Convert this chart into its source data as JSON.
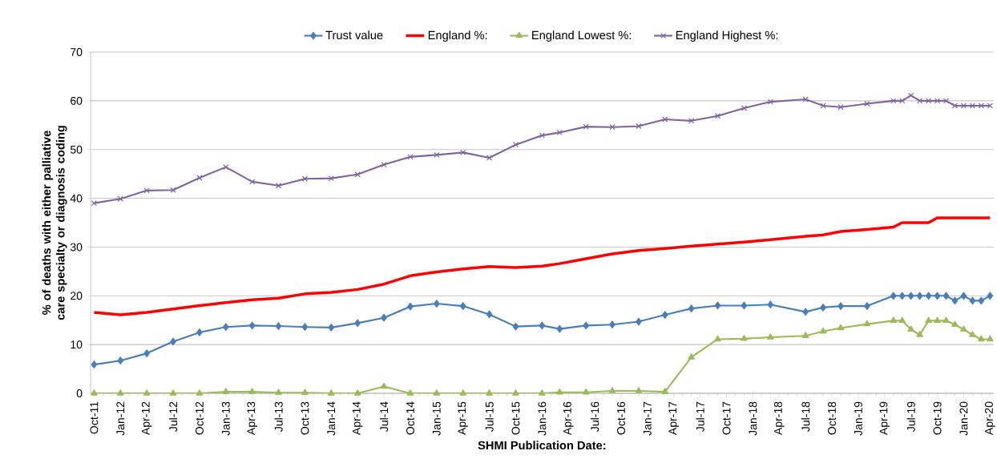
{
  "chart_data": {
    "type": "line",
    "xlabel": "SHMI Publication Date:",
    "ylabel": "% of deaths with either palliative care specialty or diagnosis coding",
    "x": [
      "2011-10",
      "2012-01",
      "2012-04",
      "2012-07",
      "2012-10",
      "2013-01",
      "2013-04",
      "2013-07",
      "2013-10",
      "2014-01",
      "2014-04",
      "2014-07",
      "2014-10",
      "2015-01",
      "2015-04",
      "2015-07",
      "2015-10",
      "2016-01",
      "2016-03",
      "2016-06",
      "2016-09",
      "2016-12",
      "2017-03",
      "2017-06",
      "2017-09",
      "2017-12",
      "2018-03",
      "2018-07",
      "2018-09",
      "2018-11",
      "2019-02",
      "2019-05",
      "2019-06",
      "2019-07",
      "2019-08",
      "2019-09",
      "2019-10",
      "2019-11",
      "2019-12",
      "2020-01",
      "2020-02",
      "2020-03",
      "2020-04"
    ],
    "series": [
      {
        "name": "Trust value",
        "color": "#4a7ebb",
        "marker": "diamond",
        "values": [
          5.9,
          6.7,
          8.2,
          10.6,
          12.5,
          13.6,
          13.9,
          13.8,
          13.6,
          13.5,
          14.4,
          15.5,
          17.8,
          18.4,
          17.9,
          16.2,
          13.7,
          13.9,
          13.2,
          13.9,
          14.1,
          14.7,
          16.1,
          17.4,
          18.0,
          18.0,
          18.2,
          16.7,
          17.6,
          17.9,
          17.9,
          20,
          20,
          20,
          20,
          20,
          20,
          20,
          19,
          20,
          19,
          19,
          20
        ]
      },
      {
        "name": "England %:",
        "color": "#ff0000",
        "marker": "none",
        "values": [
          16.6,
          16.1,
          16.6,
          17.3,
          18.0,
          18.6,
          19.2,
          19.5,
          20.4,
          20.7,
          21.3,
          22.4,
          24.1,
          24.9,
          25.5,
          26.0,
          25.8,
          26.1,
          26.6,
          27.6,
          28.6,
          29.3,
          29.7,
          30.2,
          30.6,
          31.0,
          31.5,
          32.2,
          32.5,
          33.2,
          33.6,
          34.1,
          35,
          35,
          35,
          35,
          36,
          36,
          36,
          36,
          36,
          36,
          36
        ]
      },
      {
        "name": "England Lowest  %:",
        "color": "#9bbb59",
        "marker": "triangle",
        "values": [
          0,
          0,
          0,
          0,
          0,
          0.3,
          0.3,
          0.1,
          0.1,
          0,
          0,
          1.4,
          0,
          0,
          0,
          0,
          0,
          0,
          0.2,
          0.2,
          0.5,
          0.5,
          0.3,
          7.4,
          11.1,
          11.2,
          11.5,
          11.8,
          12.7,
          13.4,
          14.2,
          14.9,
          14.9,
          13.1,
          12.0,
          14.9,
          14.9,
          14.9,
          14.1,
          13.1,
          12.0,
          11.1,
          11.1
        ]
      },
      {
        "name": "England Highest  %:",
        "color": "#8064a2",
        "marker": "cross",
        "values": [
          39.0,
          39.9,
          41.6,
          41.7,
          44.2,
          46.4,
          43.4,
          42.6,
          44.0,
          44.1,
          44.9,
          46.9,
          48.5,
          48.9,
          49.4,
          48.3,
          51.0,
          52.9,
          53.5,
          54.7,
          54.6,
          54.8,
          56.2,
          55.9,
          56.9,
          58.5,
          59.8,
          60.3,
          59.0,
          58.7,
          59.4,
          60.0,
          60.0,
          61.1,
          60,
          60,
          60,
          60,
          59,
          59,
          59,
          59,
          59
        ]
      }
    ],
    "xlim": [
      "2011-10",
      "2020-04"
    ],
    "xticks": [
      {
        "value": "2011-10",
        "label": "Oct-11"
      },
      {
        "value": "2012-01",
        "label": "Jan-12"
      },
      {
        "value": "2012-04",
        "label": "Apr-12"
      },
      {
        "value": "2012-07",
        "label": "Jul-12"
      },
      {
        "value": "2012-10",
        "label": "Oct-12"
      },
      {
        "value": "2013-01",
        "label": "Jan-13"
      },
      {
        "value": "2013-04",
        "label": "Apr-13"
      },
      {
        "value": "2013-07",
        "label": "Jul-13"
      },
      {
        "value": "2013-10",
        "label": "Oct-13"
      },
      {
        "value": "2014-01",
        "label": "Jan-14"
      },
      {
        "value": "2014-04",
        "label": "Apr-14"
      },
      {
        "value": "2014-07",
        "label": "Jul-14"
      },
      {
        "value": "2014-10",
        "label": "Oct-14"
      },
      {
        "value": "2015-01",
        "label": "Jan-15"
      },
      {
        "value": "2015-04",
        "label": "Apr-15"
      },
      {
        "value": "2015-07",
        "label": "Jul-15"
      },
      {
        "value": "2015-10",
        "label": "Oct-15"
      },
      {
        "value": "2016-01",
        "label": "Jan-16"
      },
      {
        "value": "2016-04",
        "label": "Apr-16"
      },
      {
        "value": "2016-07",
        "label": "Jul-16"
      },
      {
        "value": "2016-10",
        "label": "Oct-16"
      },
      {
        "value": "2017-01",
        "label": "Jan-17"
      },
      {
        "value": "2017-04",
        "label": "Apr-17"
      },
      {
        "value": "2017-07",
        "label": "Jul-17"
      },
      {
        "value": "2017-10",
        "label": "Oct-17"
      },
      {
        "value": "2018-01",
        "label": "Jan-18"
      },
      {
        "value": "2018-04",
        "label": "Apr-18"
      },
      {
        "value": "2018-07",
        "label": "Jul-18"
      },
      {
        "value": "2018-10",
        "label": "Oct-18"
      },
      {
        "value": "2019-01",
        "label": "Jan-19"
      },
      {
        "value": "2019-04",
        "label": "Apr-19"
      },
      {
        "value": "2019-07",
        "label": "Jul-19"
      },
      {
        "value": "2019-10",
        "label": "Oct-19"
      },
      {
        "value": "2020-01",
        "label": "Jan-20"
      },
      {
        "value": "2020-04",
        "label": "Apr-20"
      }
    ],
    "ylim": [
      0,
      70
    ],
    "yticks": [
      0,
      10,
      20,
      30,
      40,
      50,
      60,
      70
    ],
    "grid": "y",
    "legend": "top"
  }
}
